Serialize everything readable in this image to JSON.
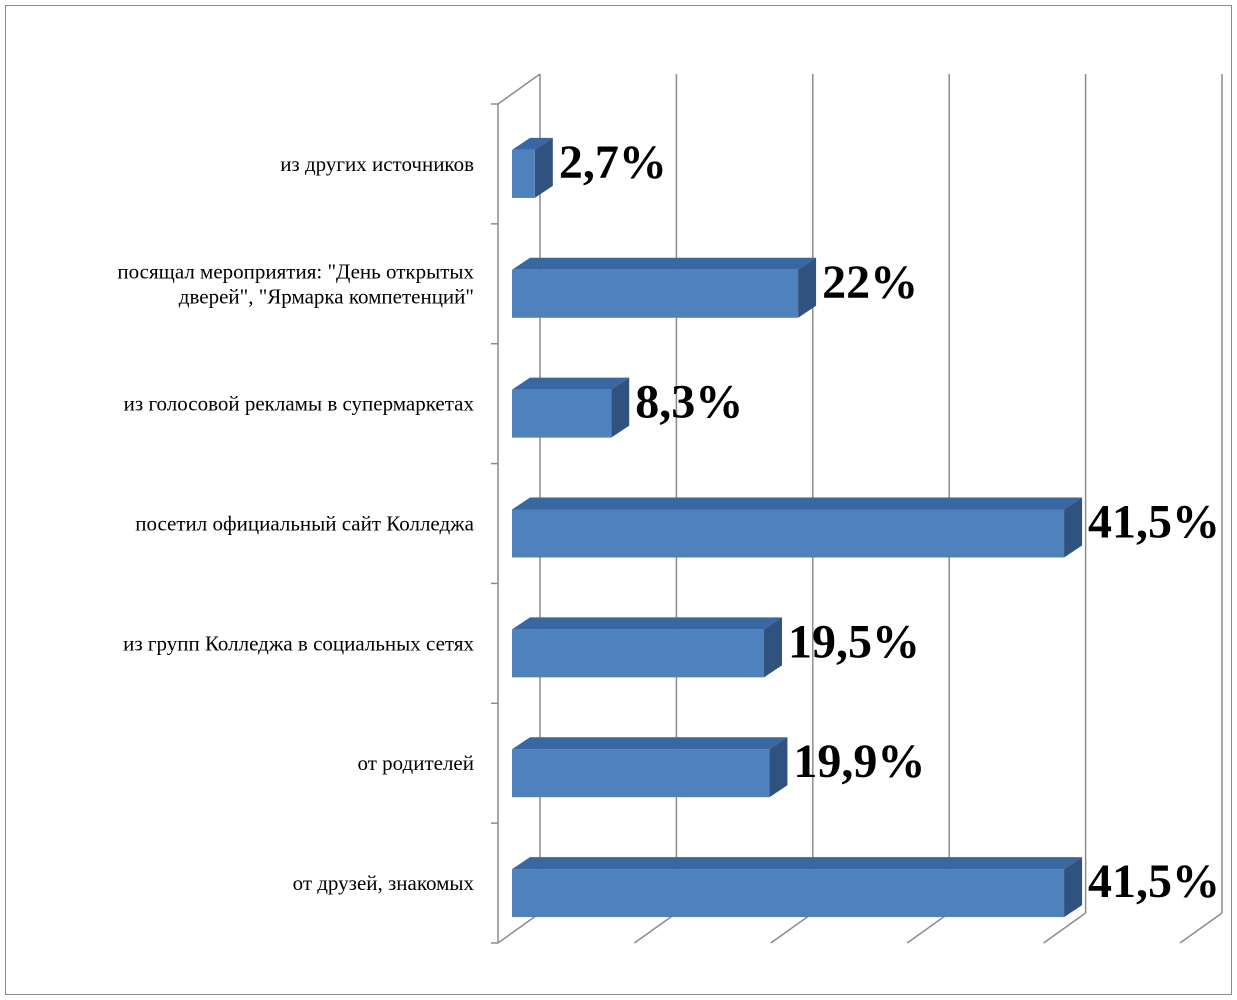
{
  "chart_data": {
    "type": "bar",
    "orientation": "horizontal",
    "style": "3d",
    "categories": [
      [
        "от друзей, знакомых"
      ],
      [
        "от родителей"
      ],
      [
        "из групп Колледжа в социальных сетях"
      ],
      [
        "посетил официальный сайт Колледжа"
      ],
      [
        "из голосовой рекламы в супермаркетах"
      ],
      [
        "посящал мероприятия: \"День открытых",
        "дверей\", \"Ярмарка компетенций\""
      ],
      [
        "из других источников"
      ]
    ],
    "values": [
      41.5,
      19.9,
      19.5,
      41.5,
      8.3,
      22,
      2.7
    ],
    "data_labels": [
      "41,5%",
      "19,9%",
      "19,5%",
      "41,5%",
      "8,3%",
      "22%",
      "2,7%"
    ],
    "xlim": [
      0,
      50
    ],
    "xticks_count": 5,
    "grid": true,
    "legend": "none",
    "title": "",
    "xlabel": "",
    "ylabel": "",
    "colors": {
      "bar_front": "#4f81bd",
      "bar_top": "#3a67a1",
      "bar_side": "#2f527f",
      "grid": "#8c8c8c"
    }
  }
}
